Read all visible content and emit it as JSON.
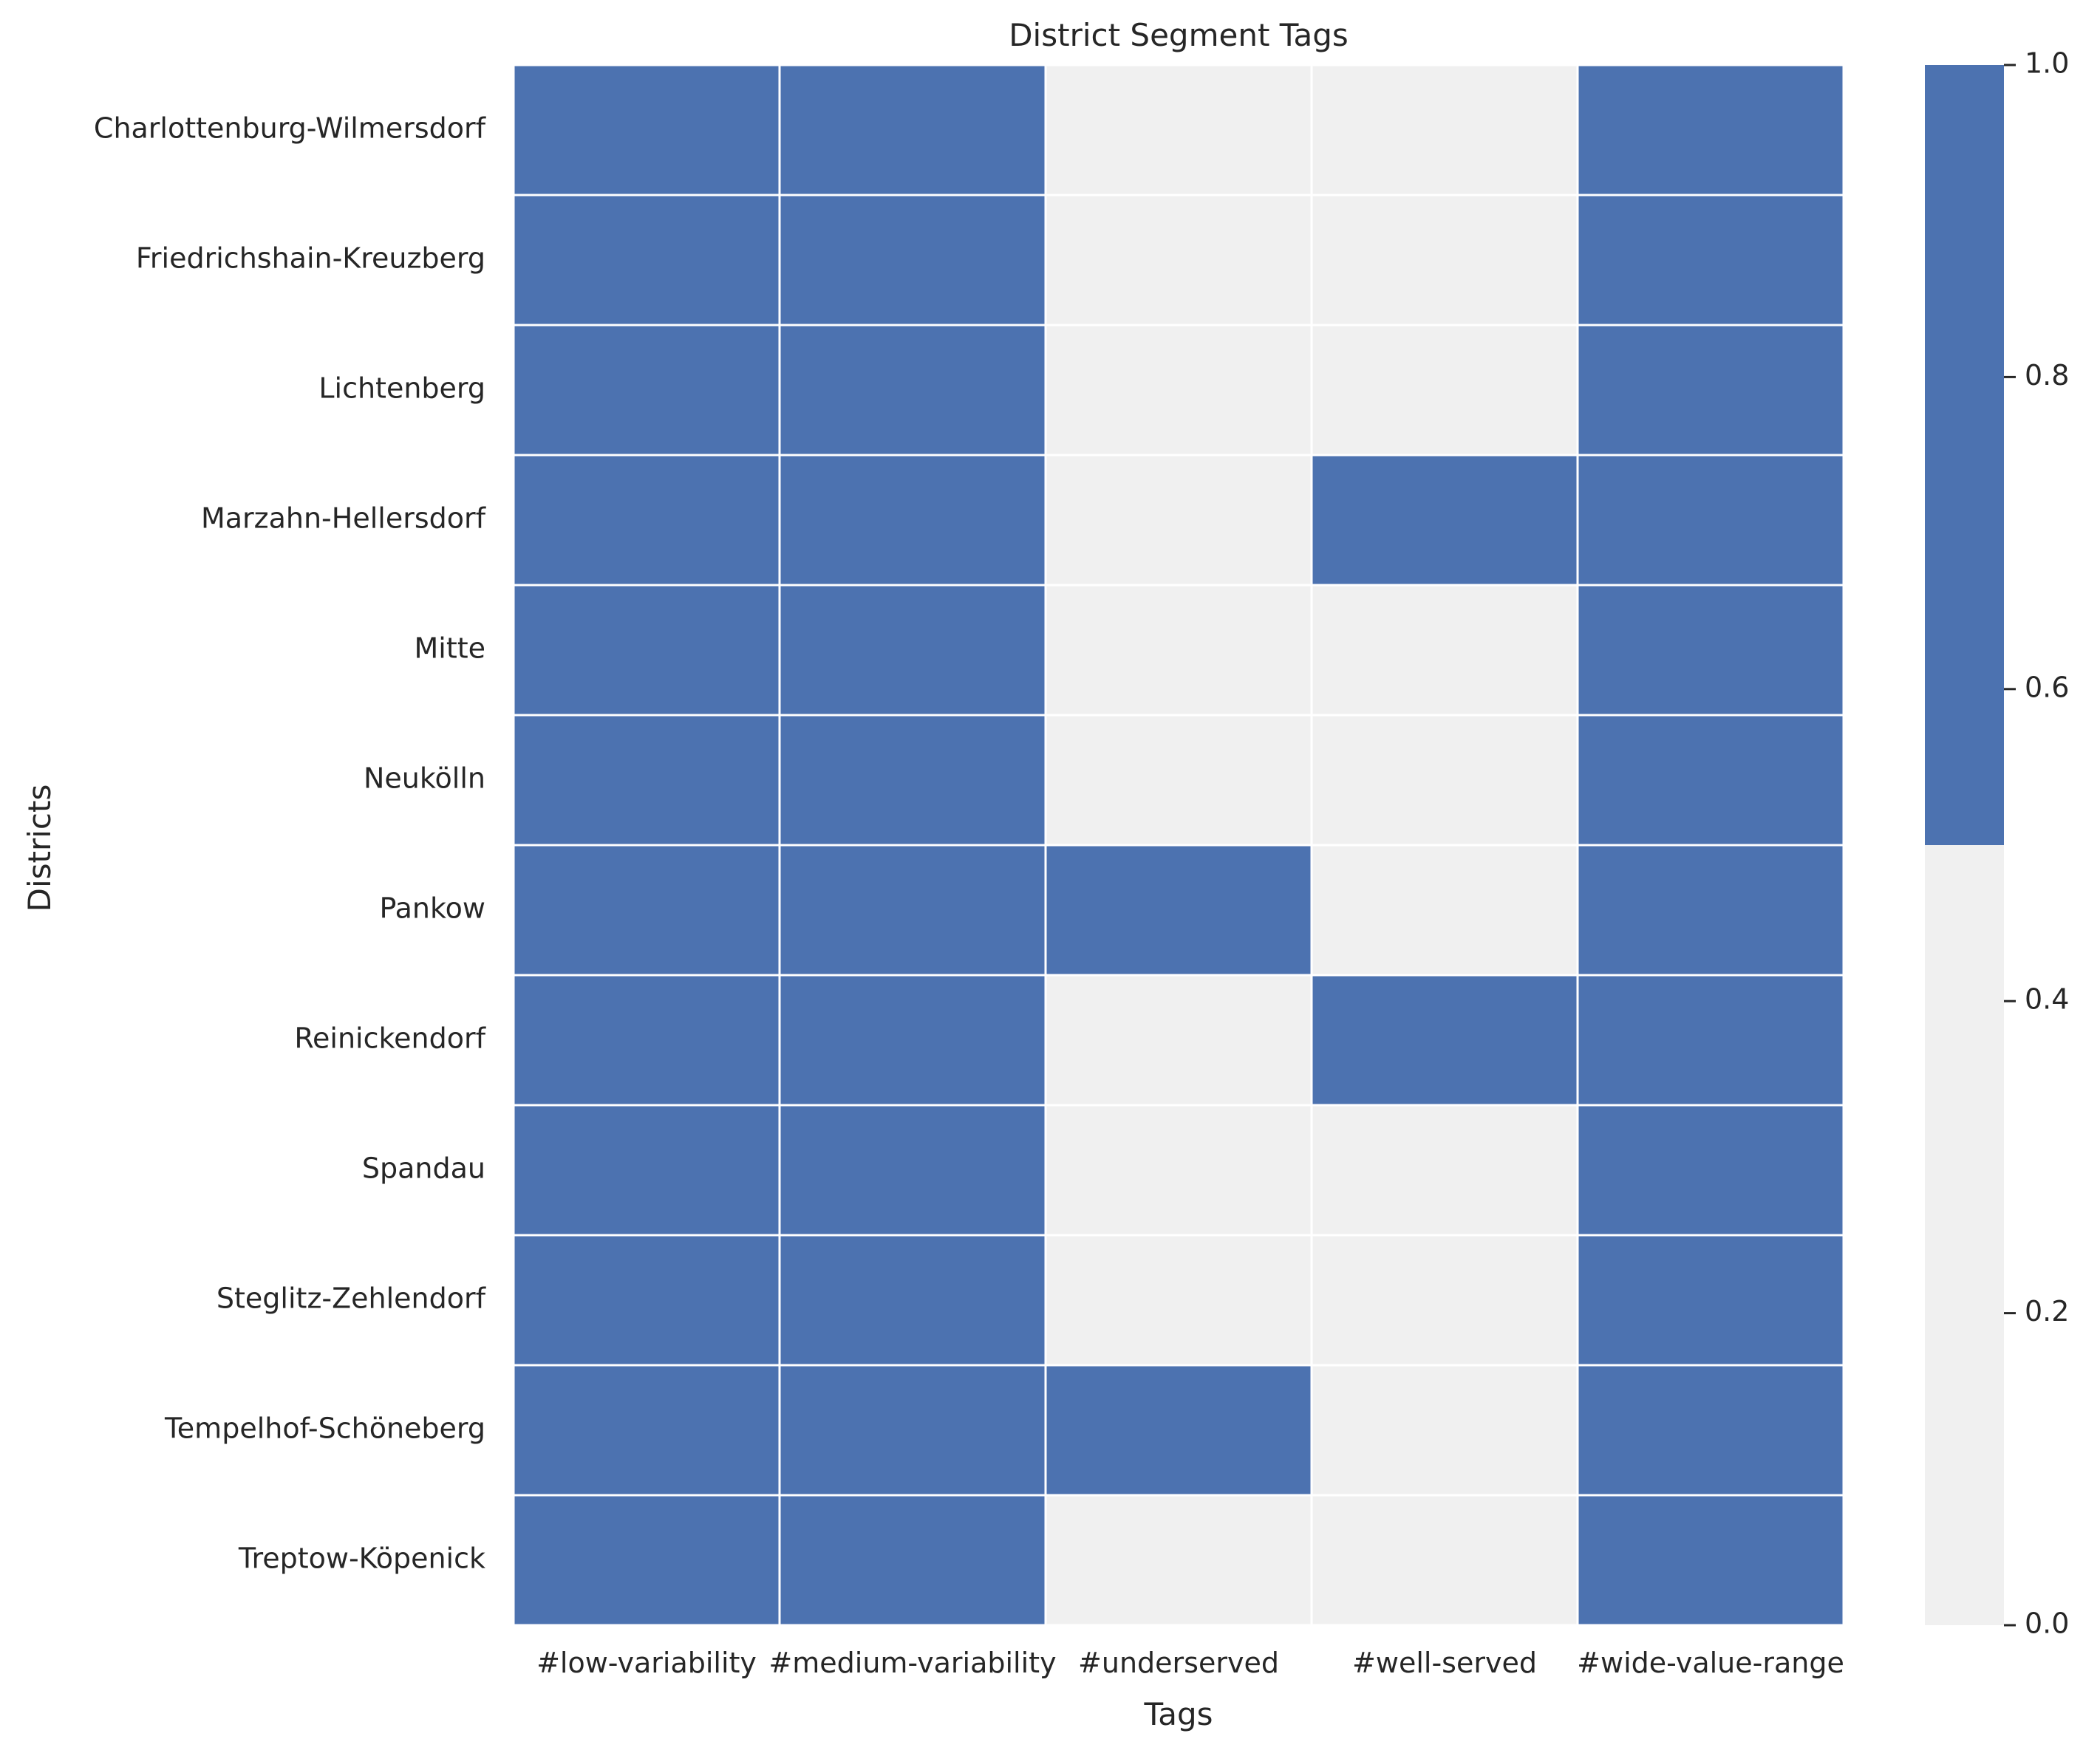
{
  "chart_data": {
    "type": "heatmap",
    "title": "District Segment Tags",
    "xlabel": "Tags",
    "ylabel": "Districts",
    "x_categories": [
      "#low-variability",
      "#medium-variability",
      "#underserved",
      "#well-served",
      "#wide-value-range"
    ],
    "y_categories": [
      "Charlottenburg-Wilmersdorf",
      "Friedrichshain-Kreuzberg",
      "Lichtenberg",
      "Marzahn-Hellersdorf",
      "Mitte",
      "Neukölln",
      "Pankow",
      "Reinickendorf",
      "Spandau",
      "Steglitz-Zehlendorf",
      "Tempelhof-Schöneberg",
      "Treptow-Köpenick"
    ],
    "values": [
      [
        1,
        1,
        0,
        0,
        1
      ],
      [
        1,
        1,
        0,
        0,
        1
      ],
      [
        1,
        1,
        0,
        0,
        1
      ],
      [
        1,
        1,
        0,
        1,
        1
      ],
      [
        1,
        1,
        0,
        0,
        1
      ],
      [
        1,
        1,
        0,
        0,
        1
      ],
      [
        1,
        1,
        1,
        0,
        1
      ],
      [
        1,
        1,
        0,
        1,
        1
      ],
      [
        1,
        1,
        0,
        0,
        1
      ],
      [
        1,
        1,
        0,
        0,
        1
      ],
      [
        1,
        1,
        1,
        0,
        1
      ],
      [
        1,
        1,
        0,
        0,
        1
      ]
    ],
    "colormap": {
      "low": "#f0f0f0",
      "high": "#4c72b0",
      "threshold": 0.5
    },
    "colorbar": {
      "range": [
        0,
        1
      ],
      "ticks": [
        0.0,
        0.2,
        0.4,
        0.6,
        0.8,
        1.0
      ],
      "tick_labels": [
        "0.0",
        "0.2",
        "0.4",
        "0.6",
        "0.8",
        "1.0"
      ]
    },
    "grid_line_color": "#ffffff"
  }
}
